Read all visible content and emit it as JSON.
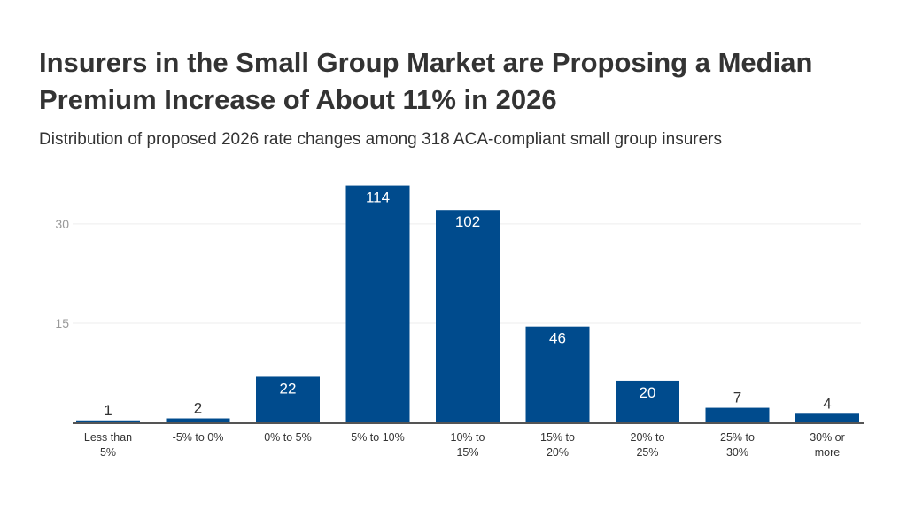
{
  "title": "Insurers in the Small Group Market are Proposing a Median Premium Increase of About 11% in 2026",
  "subtitle": "Distribution of proposed 2026 rate changes among 318 ACA-compliant small group insurers",
  "chart_data": {
    "type": "bar",
    "categories": [
      [
        "Less than",
        "5%"
      ],
      [
        "-5% to 0%"
      ],
      [
        "0% to 5%"
      ],
      [
        "5% to 10%"
      ],
      [
        "10% to",
        "15%"
      ],
      [
        "15% to",
        "20%"
      ],
      [
        "20% to",
        "25%"
      ],
      [
        "25% to",
        "30%"
      ],
      [
        "30% or",
        "more"
      ]
    ],
    "values": [
      0.3,
      0.6,
      6.9,
      35.8,
      32.1,
      14.5,
      6.3,
      2.2,
      1.3
    ],
    "data_labels": [
      "1",
      "2",
      "22",
      "114",
      "102",
      "46",
      "20",
      "7",
      "4"
    ],
    "yticks": [
      15,
      30
    ],
    "ylim": [
      0,
      36
    ],
    "grid": true,
    "bar_color": "#004B8D"
  }
}
